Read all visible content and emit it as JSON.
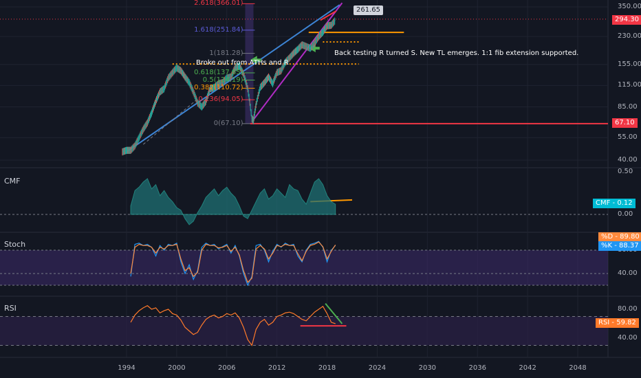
{
  "colors": {
    "bg": "#131722",
    "grid": "#1f2330",
    "price_up": "#26a69a",
    "price_down": "#ef5350",
    "trend_blue": "#3d85d6",
    "trend_purple": "#b02cc4",
    "fib_red": "#f23645",
    "orange": "#ff9800",
    "cmf": "#1e6f73",
    "stoch_k": "#2196f3",
    "stoch_d": "#ff8a3d",
    "rsi": "#ff7a2a",
    "green_line": "#4caf50",
    "stoch_band": "#3c2a6a",
    "rsi_band": "#2b2146"
  },
  "chart_data": [
    {
      "type": "line",
      "pane": "price",
      "xlabel": "",
      "ylabel": "",
      "x": [
        1993.5,
        1994.0,
        1994.5,
        1995.0,
        1995.5,
        1996.0,
        1996.5,
        1997.0,
        1997.5,
        1998.0,
        1998.5,
        1999.0,
        1999.5,
        2000.0,
        2000.5,
        2001.0,
        2001.5,
        2002.0,
        2002.5,
        2003.0,
        2003.5,
        2004.0,
        2004.5,
        2005.0,
        2005.5,
        2006.0,
        2006.5,
        2007.0,
        2007.5,
        2008.0,
        2008.5,
        2009.0,
        2009.2,
        2009.5,
        2010.0,
        2010.5,
        2011.0,
        2011.5,
        2012.0,
        2012.5,
        2013.0,
        2013.5,
        2014.0,
        2014.5,
        2015.0,
        2015.5,
        2016.0,
        2016.5,
        2017.0,
        2017.5,
        2018.0,
        2018.5,
        2019.0
      ],
      "values": [
        45,
        46,
        46,
        49,
        55,
        62,
        68,
        78,
        92,
        105,
        110,
        128,
        138,
        148,
        142,
        130,
        120,
        105,
        90,
        85,
        92,
        110,
        112,
        118,
        120,
        128,
        130,
        148,
        152,
        135,
        110,
        72,
        70,
        88,
        112,
        120,
        130,
        118,
        138,
        142,
        160,
        170,
        182,
        192,
        205,
        200,
        195,
        210,
        230,
        245,
        268,
        270,
        290
      ],
      "yticks": [
        "350.00",
        "230.00",
        "155.00",
        "115.00",
        "85.00",
        "55.00",
        "40.00"
      ],
      "xticks": [
        "1994",
        "2000",
        "2006",
        "2012",
        "2018",
        "2024",
        "2030",
        "2036",
        "2042",
        "2048"
      ],
      "last_price": "294.30",
      "level_label": "67.10",
      "fib_levels": [
        {
          "label": "2.618(366.01)",
          "value": 366.01
        },
        {
          "label": "1.618(251.84)",
          "value": 251.84
        },
        {
          "label": "1(181.28)",
          "value": 181.28
        },
        {
          "label": "0.618(137.65)",
          "value": 137.65
        },
        {
          "label": "0.5(124.19)",
          "value": 124.19
        },
        {
          "label": "0.382(110.72)",
          "value": 110.72
        },
        {
          "label": "0.236(94.05)",
          "value": 94.05
        },
        {
          "label": "0(67.10)",
          "value": 67.1
        }
      ],
      "callout": "261.65",
      "annotations": [
        "Broke out from ATHs and R",
        "Back testing R turned S. New TL emerges. 1:1 fib extension supported."
      ]
    },
    {
      "type": "area",
      "pane": "cmf",
      "title": "CMF",
      "yticks": [
        "0.50",
        "0.00"
      ],
      "badge": "CMF - 0.12",
      "x": [
        1994.5,
        1995.0,
        1995.5,
        1996.0,
        1996.5,
        1997.0,
        1997.5,
        1998.0,
        1998.5,
        1999.0,
        1999.5,
        2000.0,
        2000.5,
        2001.0,
        2001.5,
        2002.0,
        2002.5,
        2003.0,
        2003.5,
        2004.0,
        2004.5,
        2005.0,
        2005.5,
        2006.0,
        2006.5,
        2007.0,
        2007.5,
        2008.0,
        2008.5,
        2009.0,
        2009.5,
        2010.0,
        2010.5,
        2011.0,
        2011.5,
        2012.0,
        2012.5,
        2013.0,
        2013.5,
        2014.0,
        2014.5,
        2015.0,
        2015.5,
        2016.0,
        2016.5,
        2017.0,
        2017.5,
        2018.0,
        2018.5,
        2019.0
      ],
      "values": [
        0.1,
        0.28,
        0.32,
        0.38,
        0.42,
        0.3,
        0.35,
        0.22,
        0.28,
        0.2,
        0.15,
        0.08,
        0.05,
        -0.05,
        -0.12,
        -0.08,
        0.02,
        0.1,
        0.2,
        0.25,
        0.3,
        0.22,
        0.28,
        0.32,
        0.25,
        0.2,
        0.1,
        -0.02,
        -0.05,
        0.05,
        0.15,
        0.25,
        0.3,
        0.18,
        0.22,
        0.3,
        0.25,
        0.2,
        0.35,
        0.3,
        0.28,
        0.18,
        0.12,
        0.25,
        0.38,
        0.42,
        0.35,
        0.22,
        0.15,
        0.12
      ]
    },
    {
      "type": "line",
      "pane": "stoch",
      "title": "Stoch",
      "yticks": [
        "80.00",
        "40.00"
      ],
      "badge_d": "%D - 89.80",
      "badge_k": "%K - 88.37",
      "x": [
        1994.5,
        1995.0,
        1995.5,
        1996.0,
        1996.5,
        1997.0,
        1997.5,
        1998.0,
        1998.5,
        1999.0,
        1999.5,
        2000.0,
        2000.5,
        2001.0,
        2001.5,
        2002.0,
        2002.5,
        2003.0,
        2003.5,
        2004.0,
        2004.5,
        2005.0,
        2005.5,
        2006.0,
        2006.5,
        2007.0,
        2007.5,
        2008.0,
        2008.5,
        2009.0,
        2009.5,
        2010.0,
        2010.5,
        2011.0,
        2011.5,
        2012.0,
        2012.5,
        2013.0,
        2013.5,
        2014.0,
        2014.5,
        2015.0,
        2015.5,
        2016.0,
        2016.5,
        2017.0,
        2017.5,
        2018.0,
        2018.5,
        2019.0
      ],
      "series": [
        {
          "name": "%K",
          "values": [
            35,
            90,
            92,
            88,
            90,
            85,
            70,
            88,
            80,
            90,
            88,
            92,
            60,
            40,
            55,
            30,
            45,
            85,
            92,
            88,
            90,
            82,
            86,
            90,
            75,
            88,
            70,
            40,
            20,
            35,
            88,
            90,
            80,
            60,
            78,
            90,
            85,
            92,
            88,
            90,
            70,
            60,
            80,
            90,
            92,
            95,
            85,
            60,
            80,
            88
          ]
        },
        {
          "name": "%D",
          "values": [
            40,
            85,
            90,
            88,
            88,
            85,
            75,
            85,
            82,
            88,
            88,
            90,
            65,
            45,
            50,
            35,
            42,
            80,
            90,
            88,
            88,
            84,
            85,
            88,
            78,
            85,
            72,
            45,
            25,
            32,
            82,
            88,
            82,
            65,
            75,
            88,
            86,
            90,
            88,
            88,
            74,
            62,
            78,
            88,
            90,
            94,
            86,
            65,
            78,
            89
          ]
        }
      ]
    },
    {
      "type": "line",
      "pane": "rsi",
      "title": "RSI",
      "yticks": [
        "80.00",
        "40.00"
      ],
      "badge": "RSI - 59.82",
      "x": [
        1994.5,
        1995.0,
        1995.5,
        1996.0,
        1996.5,
        1997.0,
        1997.5,
        1998.0,
        1998.5,
        1999.0,
        1999.5,
        2000.0,
        2000.5,
        2001.0,
        2001.5,
        2002.0,
        2002.5,
        2003.0,
        2003.5,
        2004.0,
        2004.5,
        2005.0,
        2005.5,
        2006.0,
        2006.5,
        2007.0,
        2007.5,
        2008.0,
        2008.5,
        2009.0,
        2009.5,
        2010.0,
        2010.5,
        2011.0,
        2011.5,
        2012.0,
        2012.5,
        2013.0,
        2013.5,
        2014.0,
        2014.5,
        2015.0,
        2015.5,
        2016.0,
        2016.5,
        2017.0,
        2017.5,
        2018.0,
        2018.5,
        2019.0
      ],
      "values": [
        62,
        72,
        78,
        82,
        85,
        80,
        82,
        75,
        78,
        80,
        74,
        72,
        65,
        55,
        50,
        45,
        48,
        58,
        66,
        70,
        72,
        68,
        70,
        74,
        72,
        75,
        68,
        55,
        38,
        30,
        52,
        62,
        66,
        58,
        62,
        70,
        72,
        75,
        76,
        74,
        70,
        66,
        64,
        70,
        76,
        80,
        84,
        74,
        62,
        60
      ]
    }
  ]
}
